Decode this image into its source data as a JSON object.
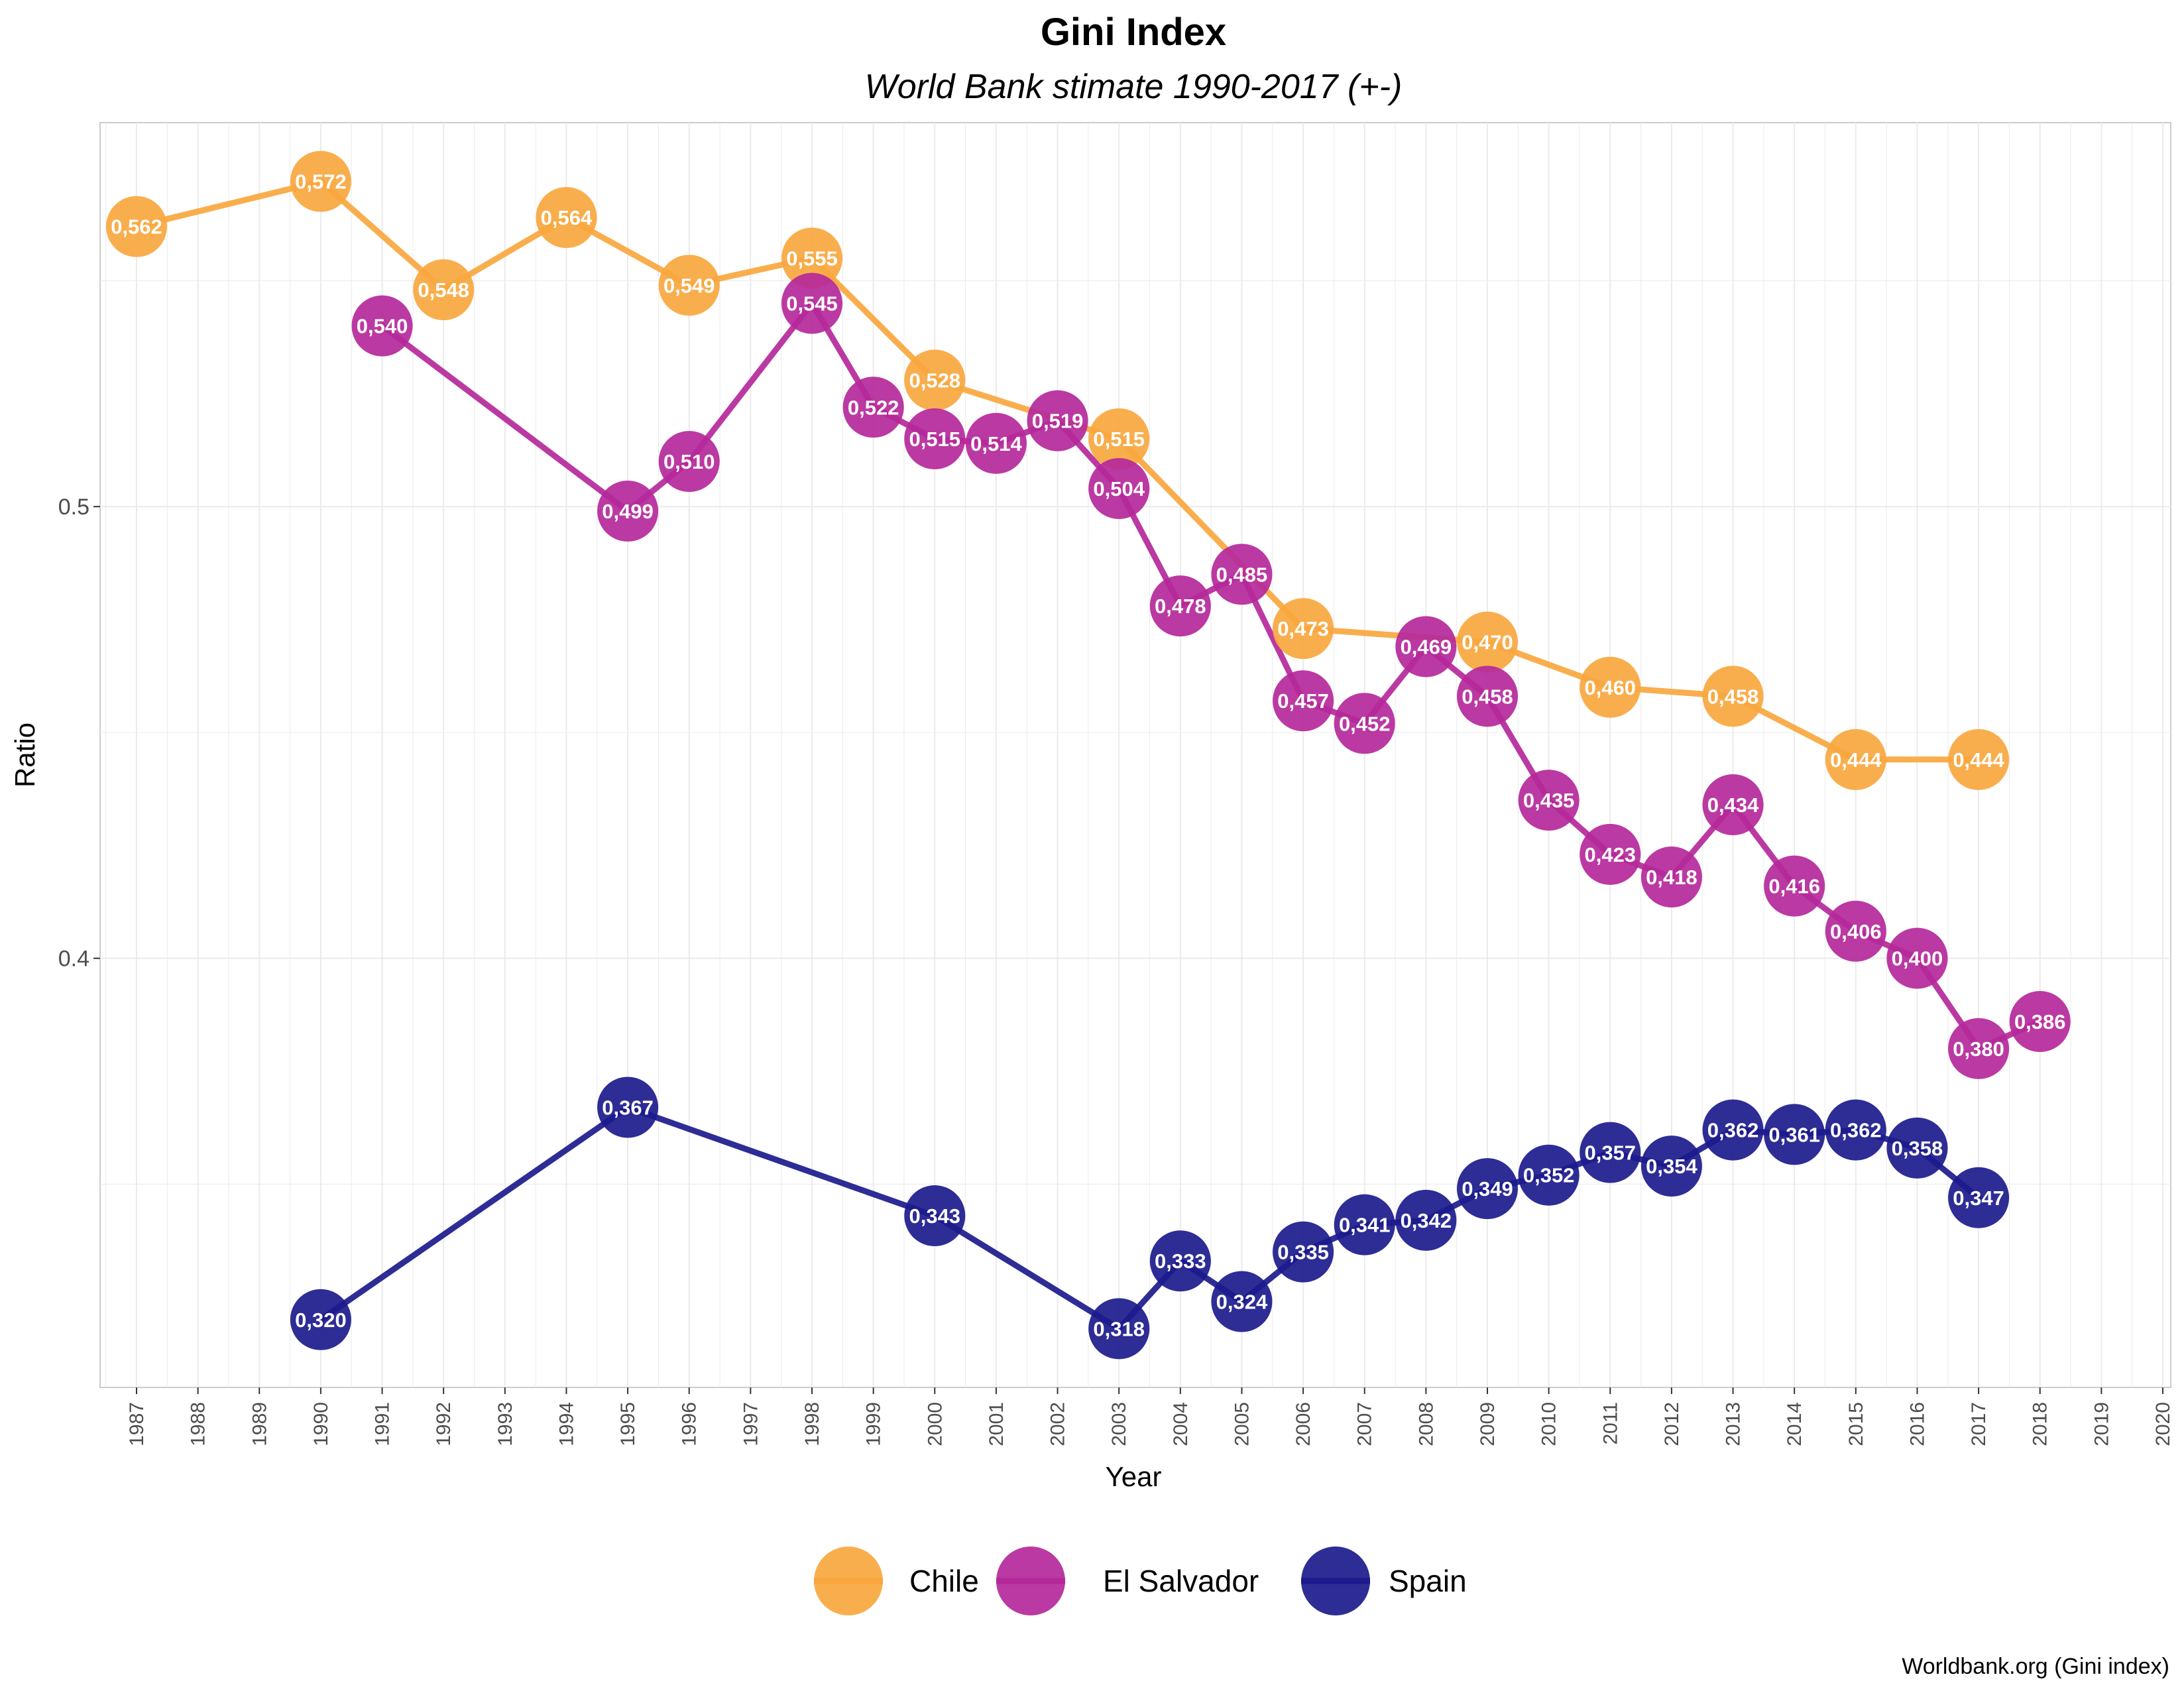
{
  "chart_data": {
    "type": "line",
    "title": "Gini Index",
    "subtitle": "World Bank stimate 1990-2017 (+-)",
    "xlabel": "Year",
    "ylabel": "Ratio",
    "caption": "Worldbank.org (Gini index)",
    "xlim": [
      1987,
      2020
    ],
    "ylim": [
      0.305,
      0.585
    ],
    "x_ticks": [
      1987,
      1988,
      1989,
      1990,
      1991,
      1992,
      1993,
      1994,
      1995,
      1996,
      1997,
      1998,
      1999,
      2000,
      2001,
      2002,
      2003,
      2004,
      2005,
      2006,
      2007,
      2008,
      2009,
      2010,
      2011,
      2012,
      2013,
      2014,
      2015,
      2016,
      2017,
      2018,
      2019,
      2020
    ],
    "y_ticks": [
      0.4,
      0.5
    ],
    "y_tick_labels": [
      "0.4",
      "0.5"
    ],
    "grid": true,
    "legend_position": "bottom",
    "series": [
      {
        "name": "Chile",
        "color": "#F9A73E",
        "points": [
          {
            "x": 1987,
            "y": 0.562,
            "label": "0,562"
          },
          {
            "x": 1990,
            "y": 0.572,
            "label": "0,572"
          },
          {
            "x": 1992,
            "y": 0.548,
            "label": "0,548"
          },
          {
            "x": 1994,
            "y": 0.564,
            "label": "0,564"
          },
          {
            "x": 1996,
            "y": 0.549,
            "label": "0,549"
          },
          {
            "x": 1998,
            "y": 0.555,
            "label": "0,555"
          },
          {
            "x": 2000,
            "y": 0.528,
            "label": "0,528"
          },
          {
            "x": 2003,
            "y": 0.515,
            "label": "0,515"
          },
          {
            "x": 2006,
            "y": 0.473,
            "label": "0,473"
          },
          {
            "x": 2009,
            "y": 0.47,
            "label": "0,470"
          },
          {
            "x": 2011,
            "y": 0.46,
            "label": "0,460"
          },
          {
            "x": 2013,
            "y": 0.458,
            "label": "0,458"
          },
          {
            "x": 2015,
            "y": 0.444,
            "label": "0,444"
          },
          {
            "x": 2017,
            "y": 0.444,
            "label": "0,444"
          }
        ]
      },
      {
        "name": "El Salvador",
        "color": "#B5289A",
        "points": [
          {
            "x": 1991,
            "y": 0.54,
            "label": "0,540"
          },
          {
            "x": 1995,
            "y": 0.499,
            "label": "0,499"
          },
          {
            "x": 1996,
            "y": 0.51,
            "label": "0,510"
          },
          {
            "x": 1998,
            "y": 0.545,
            "label": "0,545"
          },
          {
            "x": 1999,
            "y": 0.522,
            "label": "0,522"
          },
          {
            "x": 2000,
            "y": 0.515,
            "label": "0,515"
          },
          {
            "x": 2001,
            "y": 0.514,
            "label": "0,514"
          },
          {
            "x": 2002,
            "y": 0.519,
            "label": "0,519"
          },
          {
            "x": 2003,
            "y": 0.504,
            "label": "0,504"
          },
          {
            "x": 2004,
            "y": 0.478,
            "label": "0,478"
          },
          {
            "x": 2005,
            "y": 0.485,
            "label": "0,485"
          },
          {
            "x": 2006,
            "y": 0.457,
            "label": "0,457"
          },
          {
            "x": 2007,
            "y": 0.452,
            "label": "0,452"
          },
          {
            "x": 2008,
            "y": 0.469,
            "label": "0,469"
          },
          {
            "x": 2009,
            "y": 0.458,
            "label": "0,458"
          },
          {
            "x": 2010,
            "y": 0.435,
            "label": "0,435"
          },
          {
            "x": 2011,
            "y": 0.423,
            "label": "0,423"
          },
          {
            "x": 2012,
            "y": 0.418,
            "label": "0,418"
          },
          {
            "x": 2013,
            "y": 0.434,
            "label": "0,434"
          },
          {
            "x": 2014,
            "y": 0.416,
            "label": "0,416"
          },
          {
            "x": 2015,
            "y": 0.406,
            "label": "0,406"
          },
          {
            "x": 2016,
            "y": 0.4,
            "label": "0,400"
          },
          {
            "x": 2017,
            "y": 0.38,
            "label": "0,380"
          },
          {
            "x": 2018,
            "y": 0.386,
            "label": "0,386"
          }
        ]
      },
      {
        "name": "Spain",
        "color": "#1C1A8C",
        "points": [
          {
            "x": 1990,
            "y": 0.32,
            "label": "0,320"
          },
          {
            "x": 1995,
            "y": 0.367,
            "label": "0,367"
          },
          {
            "x": 2000,
            "y": 0.343,
            "label": "0,343"
          },
          {
            "x": 2003,
            "y": 0.318,
            "label": "0,318"
          },
          {
            "x": 2004,
            "y": 0.333,
            "label": "0,333"
          },
          {
            "x": 2005,
            "y": 0.324,
            "label": "0,324"
          },
          {
            "x": 2006,
            "y": 0.335,
            "label": "0,335"
          },
          {
            "x": 2007,
            "y": 0.341,
            "label": "0,341"
          },
          {
            "x": 2008,
            "y": 0.342,
            "label": "0,342"
          },
          {
            "x": 2009,
            "y": 0.349,
            "label": "0,349"
          },
          {
            "x": 2010,
            "y": 0.352,
            "label": "0,352"
          },
          {
            "x": 2011,
            "y": 0.357,
            "label": "0,357"
          },
          {
            "x": 2012,
            "y": 0.354,
            "label": "0,354"
          },
          {
            "x": 2013,
            "y": 0.362,
            "label": "0,362"
          },
          {
            "x": 2014,
            "y": 0.361,
            "label": "0,361"
          },
          {
            "x": 2015,
            "y": 0.362,
            "label": "0,362"
          },
          {
            "x": 2016,
            "y": 0.358,
            "label": "0,358"
          },
          {
            "x": 2017,
            "y": 0.347,
            "label": "0,347"
          }
        ]
      }
    ]
  }
}
